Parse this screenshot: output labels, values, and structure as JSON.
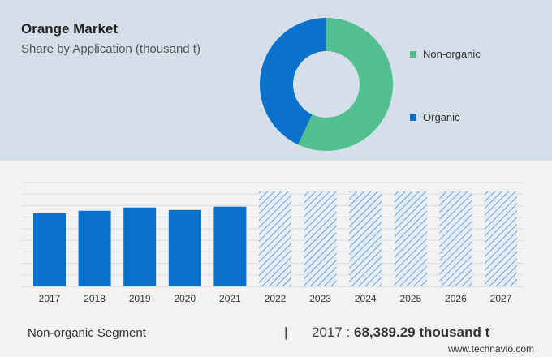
{
  "header": {
    "title": "Orange Market",
    "subtitle": "Share by Application (thousand t)"
  },
  "chart_data": [
    {
      "type": "pie",
      "variant": "donut",
      "labels": [
        "Non-organic",
        "Organic"
      ],
      "values": [
        57,
        43
      ],
      "colors": [
        "#52bf90",
        "#0b72cc"
      ],
      "legend_position": "right"
    },
    {
      "type": "bar",
      "categories": [
        "2017",
        "2018",
        "2019",
        "2020",
        "2021",
        "2022",
        "2023",
        "2024",
        "2025",
        "2026",
        "2027"
      ],
      "values": [
        68389.29,
        70700,
        73700,
        71400,
        74500,
        null,
        null,
        null,
        null,
        null,
        null
      ],
      "forecast_hidden": [
        false,
        false,
        false,
        false,
        false,
        true,
        true,
        true,
        true,
        true,
        true
      ],
      "grid": true,
      "color": "#0b72cc",
      "ylim": [
        0,
        97000
      ]
    }
  ],
  "footer": {
    "segment": "Non-organic Segment",
    "separator": "|",
    "year": "2017 :",
    "value": "68,389.29 thousand t",
    "site": "www.technavio.com"
  }
}
